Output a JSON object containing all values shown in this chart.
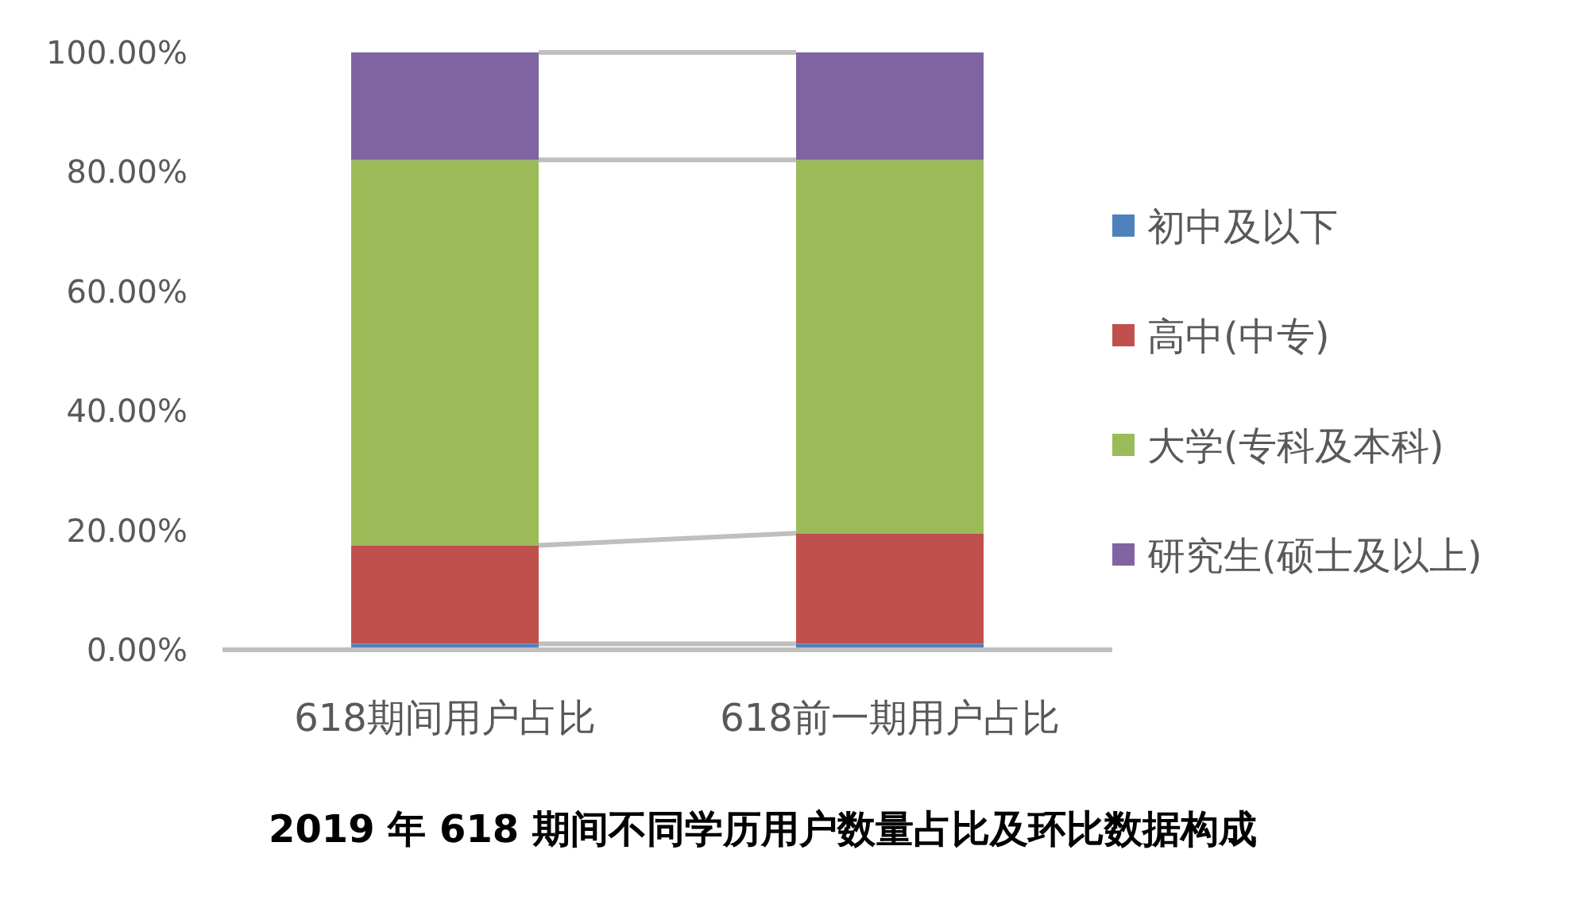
{
  "chart_data": {
    "type": "bar",
    "stacked": true,
    "title": "2019 年 618 期间不同学历用户数量占比及环比数据构成",
    "categories": [
      "618期间用户占比",
      "618前一期用户占比"
    ],
    "series": [
      {
        "name": "初中及以下",
        "color": "#4f81bd",
        "values": [
          1,
          1
        ]
      },
      {
        "name": "高中(中专)",
        "color": "#c0504d",
        "values": [
          16.5,
          18.5
        ]
      },
      {
        "name": "大学(专科及本科)",
        "color": "#9bbb59",
        "values": [
          64.5,
          62.5
        ]
      },
      {
        "name": "研究生(硕士及以上)",
        "color": "#8064a2",
        "values": [
          18,
          18
        ]
      }
    ],
    "ylim": [
      0,
      100
    ],
    "yticks": [
      {
        "value": 0,
        "label": "0.00%"
      },
      {
        "value": 20,
        "label": "20.00%"
      },
      {
        "value": 40,
        "label": "40.00%"
      },
      {
        "value": 60,
        "label": "60.00%"
      },
      {
        "value": 80,
        "label": "80.00%"
      },
      {
        "value": 100,
        "label": "100.00%"
      }
    ],
    "legend": "right"
  }
}
